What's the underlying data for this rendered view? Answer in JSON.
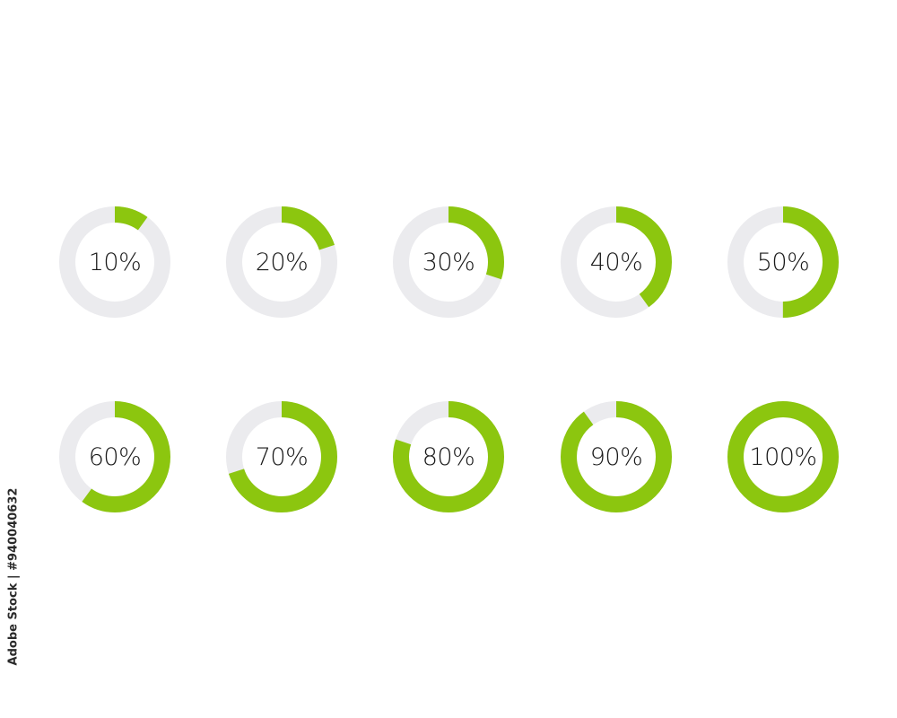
{
  "colors": {
    "progress": "#8CC60F",
    "track": "#EBEBEE",
    "text": "#1a1a1a",
    "background": "#ffffff"
  },
  "rings": [
    {
      "label": "10%",
      "value": 0.1
    },
    {
      "label": "20%",
      "value": 0.2
    },
    {
      "label": "30%",
      "value": 0.3
    },
    {
      "label": "40%",
      "value": 0.4
    },
    {
      "label": "50%",
      "value": 0.5
    },
    {
      "label": "60%",
      "value": 0.6
    },
    {
      "label": "70%",
      "value": 0.7
    },
    {
      "label": "80%",
      "value": 0.8
    },
    {
      "label": "90%",
      "value": 0.9
    },
    {
      "label": "100%",
      "value": 1.0
    }
  ],
  "stock_watermark": "Adobe Stock | #940040632"
}
